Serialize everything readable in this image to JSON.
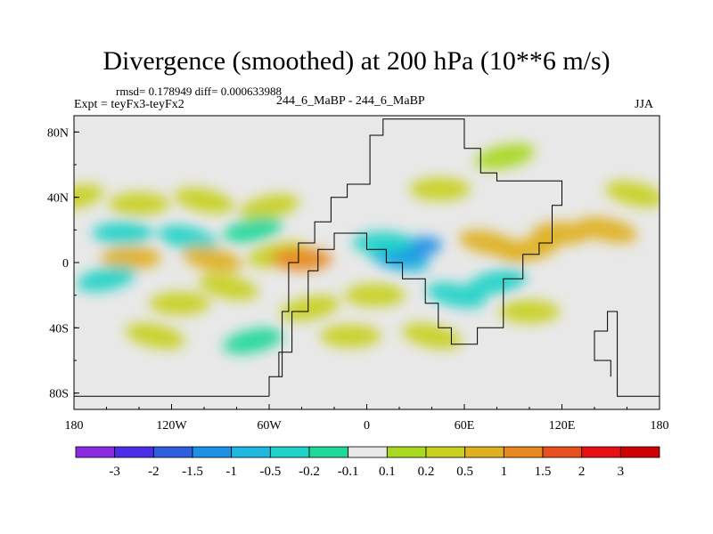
{
  "title": "Divergence (smoothed) at 200 hPa (10**6 m/s)",
  "stats": "rmsd= 0.178949 diff= 0.000633988",
  "experiment": "Expt = teyFx3-teyFx2",
  "runs": "244_6_MaBP - 244_6_MaBP",
  "season": "JJA",
  "chart_data": {
    "type": "heatmap",
    "title": "Divergence (smoothed) at 200 hPa (10**6 m/s)",
    "units": "10**6 m/s",
    "projection": "cylindrical equidistant",
    "xlim": [
      -180,
      180
    ],
    "ylim": [
      -90,
      90
    ],
    "x_ticks": [
      {
        "value": -180,
        "label": "180"
      },
      {
        "value": -120,
        "label": "120W"
      },
      {
        "value": -60,
        "label": "60W"
      },
      {
        "value": 0,
        "label": "0"
      },
      {
        "value": 60,
        "label": "60E"
      },
      {
        "value": 120,
        "label": "120E"
      },
      {
        "value": 180,
        "label": "180"
      }
    ],
    "y_ticks": [
      {
        "value": 80,
        "label": "80N"
      },
      {
        "value": 40,
        "label": "40N"
      },
      {
        "value": 0,
        "label": "0"
      },
      {
        "value": -40,
        "label": "40S"
      },
      {
        "value": -80,
        "label": "80S"
      }
    ],
    "colorbar": {
      "levels": [
        "-3",
        "-2",
        "-1.5",
        "-1",
        "-0.5",
        "-0.2",
        "-0.1",
        "0.1",
        "0.2",
        "0.5",
        "1",
        "1.5",
        "2",
        "3"
      ],
      "colors": [
        "#8a2be2",
        "#4b2ee6",
        "#2f5fe0",
        "#1e90e6",
        "#1fb8e0",
        "#20d2c8",
        "#20d89a",
        "#e8e8e8",
        "#a8d820",
        "#c8d020",
        "#e0b020",
        "#e88820",
        "#e85020",
        "#e81010",
        "#d00000"
      ]
    },
    "anomalies": [
      {
        "lon": -180,
        "lat": 40,
        "value": 0.2
      },
      {
        "lon": -140,
        "lat": 36,
        "value": 0.3
      },
      {
        "lon": -100,
        "lat": 38,
        "value": 0.25
      },
      {
        "lon": -60,
        "lat": 34,
        "value": 0.2
      },
      {
        "lon": -150,
        "lat": 18,
        "value": -0.3
      },
      {
        "lon": -110,
        "lat": 15,
        "value": -0.25
      },
      {
        "lon": -70,
        "lat": 20,
        "value": -0.2
      },
      {
        "lon": -145,
        "lat": 3,
        "value": 0.6
      },
      {
        "lon": -95,
        "lat": 2,
        "value": 0.5
      },
      {
        "lon": -55,
        "lat": 5,
        "value": 0.4
      },
      {
        "lon": -40,
        "lat": 2,
        "value": 1.2
      },
      {
        "lon": 20,
        "lat": 2,
        "value": -1.0
      },
      {
        "lon": 28,
        "lat": 8,
        "value": -1.2
      },
      {
        "lon": 10,
        "lat": 12,
        "value": -0.5
      },
      {
        "lon": 75,
        "lat": 12,
        "value": 0.8
      },
      {
        "lon": 100,
        "lat": 8,
        "value": 0.6
      },
      {
        "lon": 120,
        "lat": 18,
        "value": 0.9
      },
      {
        "lon": 148,
        "lat": 20,
        "value": 0.5
      },
      {
        "lon": 85,
        "lat": 65,
        "value": 0.15
      },
      {
        "lon": 45,
        "lat": 45,
        "value": 0.2
      },
      {
        "lon": 165,
        "lat": 42,
        "value": 0.2
      },
      {
        "lon": -160,
        "lat": -10,
        "value": -0.3
      },
      {
        "lon": -115,
        "lat": -25,
        "value": 0.4
      },
      {
        "lon": -85,
        "lat": -15,
        "value": 0.3
      },
      {
        "lon": -35,
        "lat": -28,
        "value": 0.4
      },
      {
        "lon": 5,
        "lat": -20,
        "value": 0.3
      },
      {
        "lon": 55,
        "lat": -20,
        "value": -0.5
      },
      {
        "lon": 80,
        "lat": -12,
        "value": -0.4
      },
      {
        "lon": 100,
        "lat": -30,
        "value": 0.3
      },
      {
        "lon": -130,
        "lat": -45,
        "value": 0.3
      },
      {
        "lon": -70,
        "lat": -48,
        "value": -0.2
      },
      {
        "lon": -10,
        "lat": -45,
        "value": 0.2
      },
      {
        "lon": 40,
        "lat": -45,
        "value": 0.2
      }
    ],
    "domain_outline": [
      [
        -60,
        -82
      ],
      [
        -60,
        -70
      ],
      [
        -52,
        -70
      ],
      [
        -52,
        -30
      ],
      [
        -48,
        -30
      ],
      [
        -48,
        0
      ],
      [
        -42,
        0
      ],
      [
        -42,
        12
      ],
      [
        -32,
        12
      ],
      [
        -32,
        25
      ],
      [
        -22,
        25
      ],
      [
        -22,
        40
      ],
      [
        -12,
        40
      ],
      [
        -12,
        48
      ],
      [
        2,
        48
      ],
      [
        2,
        78
      ],
      [
        10,
        78
      ],
      [
        10,
        88
      ],
      [
        60,
        88
      ],
      [
        60,
        70
      ],
      [
        70,
        70
      ],
      [
        70,
        55
      ],
      [
        80,
        55
      ],
      [
        80,
        50
      ],
      [
        120,
        50
      ],
      [
        120,
        35
      ],
      [
        114,
        35
      ],
      [
        114,
        12
      ],
      [
        106,
        12
      ],
      [
        106,
        5
      ],
      [
        96,
        5
      ],
      [
        96,
        -10
      ],
      [
        84,
        -10
      ],
      [
        84,
        -40
      ],
      [
        68,
        -40
      ],
      [
        68,
        -50
      ],
      [
        52,
        -50
      ],
      [
        52,
        -40
      ],
      [
        44,
        -40
      ],
      [
        44,
        -25
      ],
      [
        36,
        -25
      ],
      [
        36,
        -10
      ],
      [
        22,
        -10
      ],
      [
        22,
        0
      ],
      [
        12,
        0
      ],
      [
        12,
        8
      ],
      [
        0,
        8
      ],
      [
        0,
        18
      ],
      [
        -20,
        18
      ],
      [
        -20,
        8
      ],
      [
        -30,
        8
      ],
      [
        -30,
        -5
      ],
      [
        -36,
        -5
      ],
      [
        -36,
        -30
      ],
      [
        -46,
        -30
      ],
      [
        -46,
        -55
      ],
      [
        -54,
        -55
      ],
      [
        -54,
        -70
      ],
      [
        -52,
        -70
      ]
    ],
    "secondary_outline": [
      [
        150,
        -70
      ],
      [
        150,
        -60
      ],
      [
        140,
        -60
      ],
      [
        140,
        -42
      ],
      [
        148,
        -42
      ],
      [
        148,
        -30
      ],
      [
        154,
        -30
      ],
      [
        154,
        -82
      ],
      [
        180,
        -82
      ]
    ],
    "bottom_outline": [
      [
        -180,
        -82
      ],
      [
        -60,
        -82
      ]
    ]
  }
}
